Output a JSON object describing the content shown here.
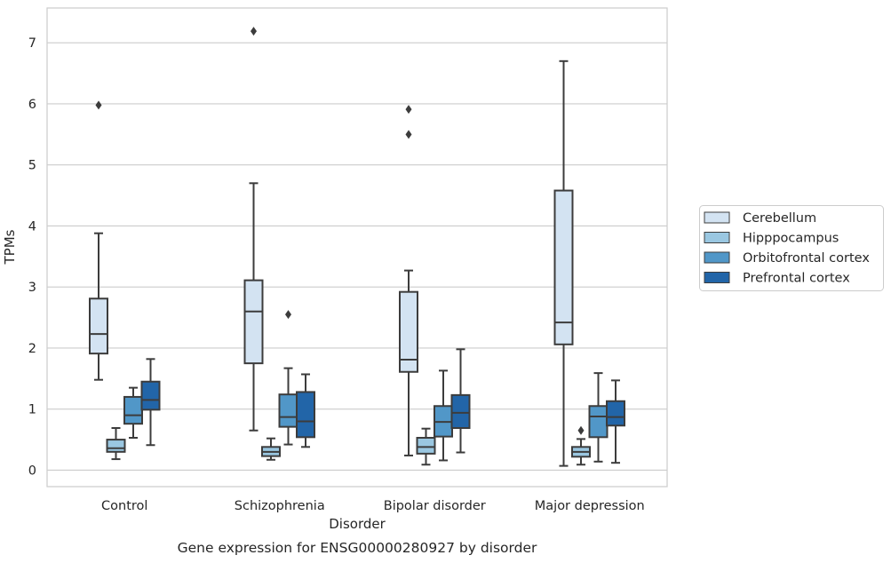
{
  "chart_data": {
    "type": "box",
    "title": "Gene expression for ENSG00000280927 by disorder",
    "xlabel": "Disorder",
    "ylabel": "TPMs",
    "categories": [
      "Control",
      "Schizophrenia",
      "Bipolar disorder",
      "Major depression"
    ],
    "ylim": [
      -0.27,
      7.57
    ],
    "yticks": [
      0,
      1,
      2,
      3,
      4,
      5,
      6,
      7
    ],
    "grid": "horizontal",
    "legend_position": "right",
    "series": [
      {
        "name": "Cerebellum",
        "color": "#d3e3f2",
        "boxes": [
          {
            "whislo": 1.48,
            "q1": 1.91,
            "med": 2.23,
            "q3": 2.81,
            "whishi": 3.88,
            "fliers": [
              5.98
            ]
          },
          {
            "whislo": 0.65,
            "q1": 1.75,
            "med": 2.6,
            "q3": 3.11,
            "whishi": 4.7,
            "fliers": [
              7.19
            ]
          },
          {
            "whislo": 0.24,
            "q1": 1.61,
            "med": 1.81,
            "q3": 2.92,
            "whishi": 3.27,
            "fliers": [
              5.5,
              5.91
            ]
          },
          {
            "whislo": 0.07,
            "q1": 2.06,
            "med": 2.42,
            "q3": 4.58,
            "whishi": 6.7,
            "fliers": []
          }
        ]
      },
      {
        "name": "Hipppocampus",
        "color": "#9ac7e1",
        "boxes": [
          {
            "whislo": 0.18,
            "q1": 0.3,
            "med": 0.36,
            "q3": 0.5,
            "whishi": 0.69,
            "fliers": []
          },
          {
            "whislo": 0.17,
            "q1": 0.23,
            "med": 0.3,
            "q3": 0.38,
            "whishi": 0.52,
            "fliers": []
          },
          {
            "whislo": 0.09,
            "q1": 0.27,
            "med": 0.38,
            "q3": 0.53,
            "whishi": 0.68,
            "fliers": []
          },
          {
            "whislo": 0.09,
            "q1": 0.22,
            "med": 0.3,
            "q3": 0.38,
            "whishi": 0.51,
            "fliers": [
              0.65
            ]
          }
        ]
      },
      {
        "name": "Orbitofrontal cortex",
        "color": "#5197c8",
        "boxes": [
          {
            "whislo": 0.53,
            "q1": 0.76,
            "med": 0.9,
            "q3": 1.2,
            "whishi": 1.35,
            "fliers": []
          },
          {
            "whislo": 0.42,
            "q1": 0.71,
            "med": 0.87,
            "q3": 1.24,
            "whishi": 1.67,
            "fliers": [
              2.55
            ]
          },
          {
            "whislo": 0.16,
            "q1": 0.55,
            "med": 0.79,
            "q3": 1.05,
            "whishi": 1.63,
            "fliers": []
          },
          {
            "whislo": 0.14,
            "q1": 0.54,
            "med": 0.88,
            "q3": 1.05,
            "whishi": 1.59,
            "fliers": []
          }
        ]
      },
      {
        "name": "Prefrontal cortex",
        "color": "#2265a8",
        "boxes": [
          {
            "whislo": 0.41,
            "q1": 0.99,
            "med": 1.15,
            "q3": 1.45,
            "whishi": 1.82,
            "fliers": []
          },
          {
            "whislo": 0.38,
            "q1": 0.54,
            "med": 0.8,
            "q3": 1.28,
            "whishi": 1.57,
            "fliers": []
          },
          {
            "whislo": 0.29,
            "q1": 0.69,
            "med": 0.94,
            "q3": 1.23,
            "whishi": 1.98,
            "fliers": []
          },
          {
            "whislo": 0.12,
            "q1": 0.73,
            "med": 0.87,
            "q3": 1.13,
            "whishi": 1.47,
            "fliers": []
          }
        ]
      }
    ]
  }
}
